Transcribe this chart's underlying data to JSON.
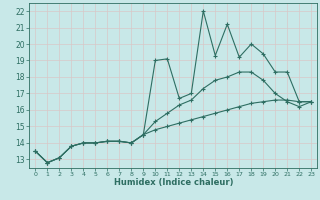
{
  "xlabel": "Humidex (Indice chaleur)",
  "bg_color": "#c8e8e8",
  "grid_color": "#d4e8e0",
  "line_color": "#2e6e62",
  "xlim": [
    -0.5,
    23.5
  ],
  "ylim": [
    12.5,
    22.5
  ],
  "xticks": [
    0,
    1,
    2,
    3,
    4,
    5,
    6,
    7,
    8,
    9,
    10,
    11,
    12,
    13,
    14,
    15,
    16,
    17,
    18,
    19,
    20,
    21,
    22,
    23
  ],
  "yticks": [
    13,
    14,
    15,
    16,
    17,
    18,
    19,
    20,
    21,
    22
  ],
  "line1_x": [
    0,
    1,
    2,
    3,
    4,
    5,
    6,
    7,
    8,
    9,
    10,
    11,
    12,
    13,
    14,
    15,
    16,
    17,
    18,
    19,
    20,
    21,
    22,
    23
  ],
  "line1_y": [
    13.5,
    12.8,
    13.1,
    13.8,
    14.0,
    14.0,
    14.1,
    14.1,
    14.0,
    14.5,
    19.0,
    19.1,
    16.7,
    17.0,
    22.0,
    19.3,
    21.2,
    19.2,
    20.0,
    19.4,
    18.3,
    18.3,
    16.5,
    16.5
  ],
  "line2_x": [
    0,
    1,
    2,
    3,
    4,
    5,
    6,
    7,
    8,
    9,
    10,
    11,
    12,
    13,
    14,
    15,
    16,
    17,
    18,
    19,
    20,
    21,
    22,
    23
  ],
  "line2_y": [
    13.5,
    12.8,
    13.1,
    13.8,
    14.0,
    14.0,
    14.1,
    14.1,
    14.0,
    14.5,
    15.3,
    15.8,
    16.3,
    16.6,
    17.3,
    17.8,
    18.0,
    18.3,
    18.3,
    17.8,
    17.0,
    16.5,
    16.2,
    16.5
  ],
  "line3_x": [
    0,
    1,
    2,
    3,
    4,
    5,
    6,
    7,
    8,
    9,
    10,
    11,
    12,
    13,
    14,
    15,
    16,
    17,
    18,
    19,
    20,
    21,
    22,
    23
  ],
  "line3_y": [
    13.5,
    12.8,
    13.1,
    13.8,
    14.0,
    14.0,
    14.1,
    14.1,
    14.0,
    14.5,
    14.8,
    15.0,
    15.2,
    15.4,
    15.6,
    15.8,
    16.0,
    16.2,
    16.4,
    16.5,
    16.6,
    16.6,
    16.5,
    16.5
  ]
}
